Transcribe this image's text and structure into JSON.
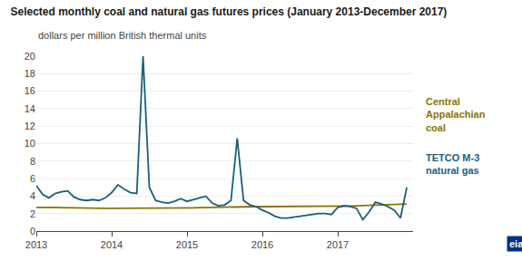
{
  "chart_data": {
    "type": "line",
    "title": "Selected monthly coal and natural gas futures prices (January 2013-December 2017)",
    "subtitle": "dollars per million British thermal units",
    "annotations": [
      "eia"
    ],
    "x": [
      2013.0,
      2013.0833333333333,
      2013.1666666666667,
      2013.25,
      2013.3333333333333,
      2013.4166666666667,
      2013.5,
      2013.5833333333333,
      2013.6666666666667,
      2013.75,
      2013.8333333333333,
      2013.9166666666667,
      2014.0,
      2014.0833333333333,
      2014.1666666666667,
      2014.25,
      2014.3333333333333,
      2014.4166666666667,
      2014.5,
      2014.5833333333333,
      2014.6666666666667,
      2014.75,
      2014.8333333333333,
      2014.9166666666667,
      2015.0,
      2015.0833333333333,
      2015.1666666666667,
      2015.25,
      2015.3333333333333,
      2015.4166666666667,
      2015.5,
      2015.5833333333333,
      2015.6666666666667,
      2015.75,
      2015.8333333333333,
      2015.9166666666667,
      2016.0,
      2016.0833333333333,
      2016.1666666666667,
      2016.25,
      2016.3333333333333,
      2016.4166666666667,
      2016.5,
      2016.5833333333333,
      2016.6666666666667,
      2016.75,
      2016.8333333333333,
      2016.9166666666667,
      2017.0,
      2017.0833333333333,
      2017.1666666666667,
      2017.25,
      2017.3333333333333,
      2017.4166666666667,
      2017.5,
      2017.5833333333333,
      2017.6666666666667,
      2017.75,
      2017.8333333333333,
      2017.9166666666667
    ],
    "series": [
      {
        "name": "Central\nAppalachian\ncoal",
        "color": "#8B7300",
        "values": [
          2.7,
          2.72,
          2.71,
          2.7,
          2.68,
          2.66,
          2.64,
          2.63,
          2.62,
          2.61,
          2.6,
          2.6,
          2.6,
          2.6,
          2.6,
          2.6,
          2.6,
          2.6,
          2.6,
          2.6,
          2.6,
          2.6,
          2.6,
          2.62,
          2.64,
          2.66,
          2.68,
          2.7,
          2.72,
          2.74,
          2.76,
          2.78,
          2.79,
          2.8,
          2.8,
          2.8,
          2.8,
          2.8,
          2.8,
          2.8,
          2.8,
          2.8,
          2.8,
          2.8,
          2.8,
          2.8,
          2.8,
          2.8,
          2.82,
          2.84,
          2.86,
          2.88,
          2.9,
          2.92,
          2.94,
          2.96,
          2.98,
          3.0,
          3.05,
          3.1
        ]
      },
      {
        "name": "TETCO M-3\nnatural gas",
        "color": "#1a5f7a",
        "values": [
          5.2,
          4.2,
          3.8,
          4.3,
          4.5,
          4.6,
          3.9,
          3.6,
          3.5,
          3.6,
          3.5,
          3.8,
          4.4,
          5.3,
          4.8,
          4.4,
          4.3,
          20.0,
          5.0,
          3.5,
          3.3,
          3.2,
          3.4,
          3.7,
          3.4,
          3.6,
          3.8,
          4.0,
          3.2,
          2.9,
          3.0,
          3.5,
          10.6,
          3.5,
          3.0,
          2.8,
          2.4,
          2.1,
          1.7,
          1.5,
          1.5,
          1.6,
          1.7,
          1.8,
          1.9,
          2.0,
          2.0,
          1.9,
          2.7,
          2.9,
          2.8,
          2.6,
          1.3,
          2.2,
          3.3,
          3.1,
          2.8,
          2.4,
          1.5,
          5.0
        ]
      }
    ],
    "xlim": [
      2013.0,
      2018.0
    ],
    "xticks": [
      2013,
      2014,
      2015,
      2016,
      2017
    ],
    "ylim": [
      0,
      20
    ],
    "yticks": [
      0,
      2,
      4,
      6,
      8,
      10,
      12,
      14,
      16,
      18,
      20
    ],
    "grid": "y"
  }
}
